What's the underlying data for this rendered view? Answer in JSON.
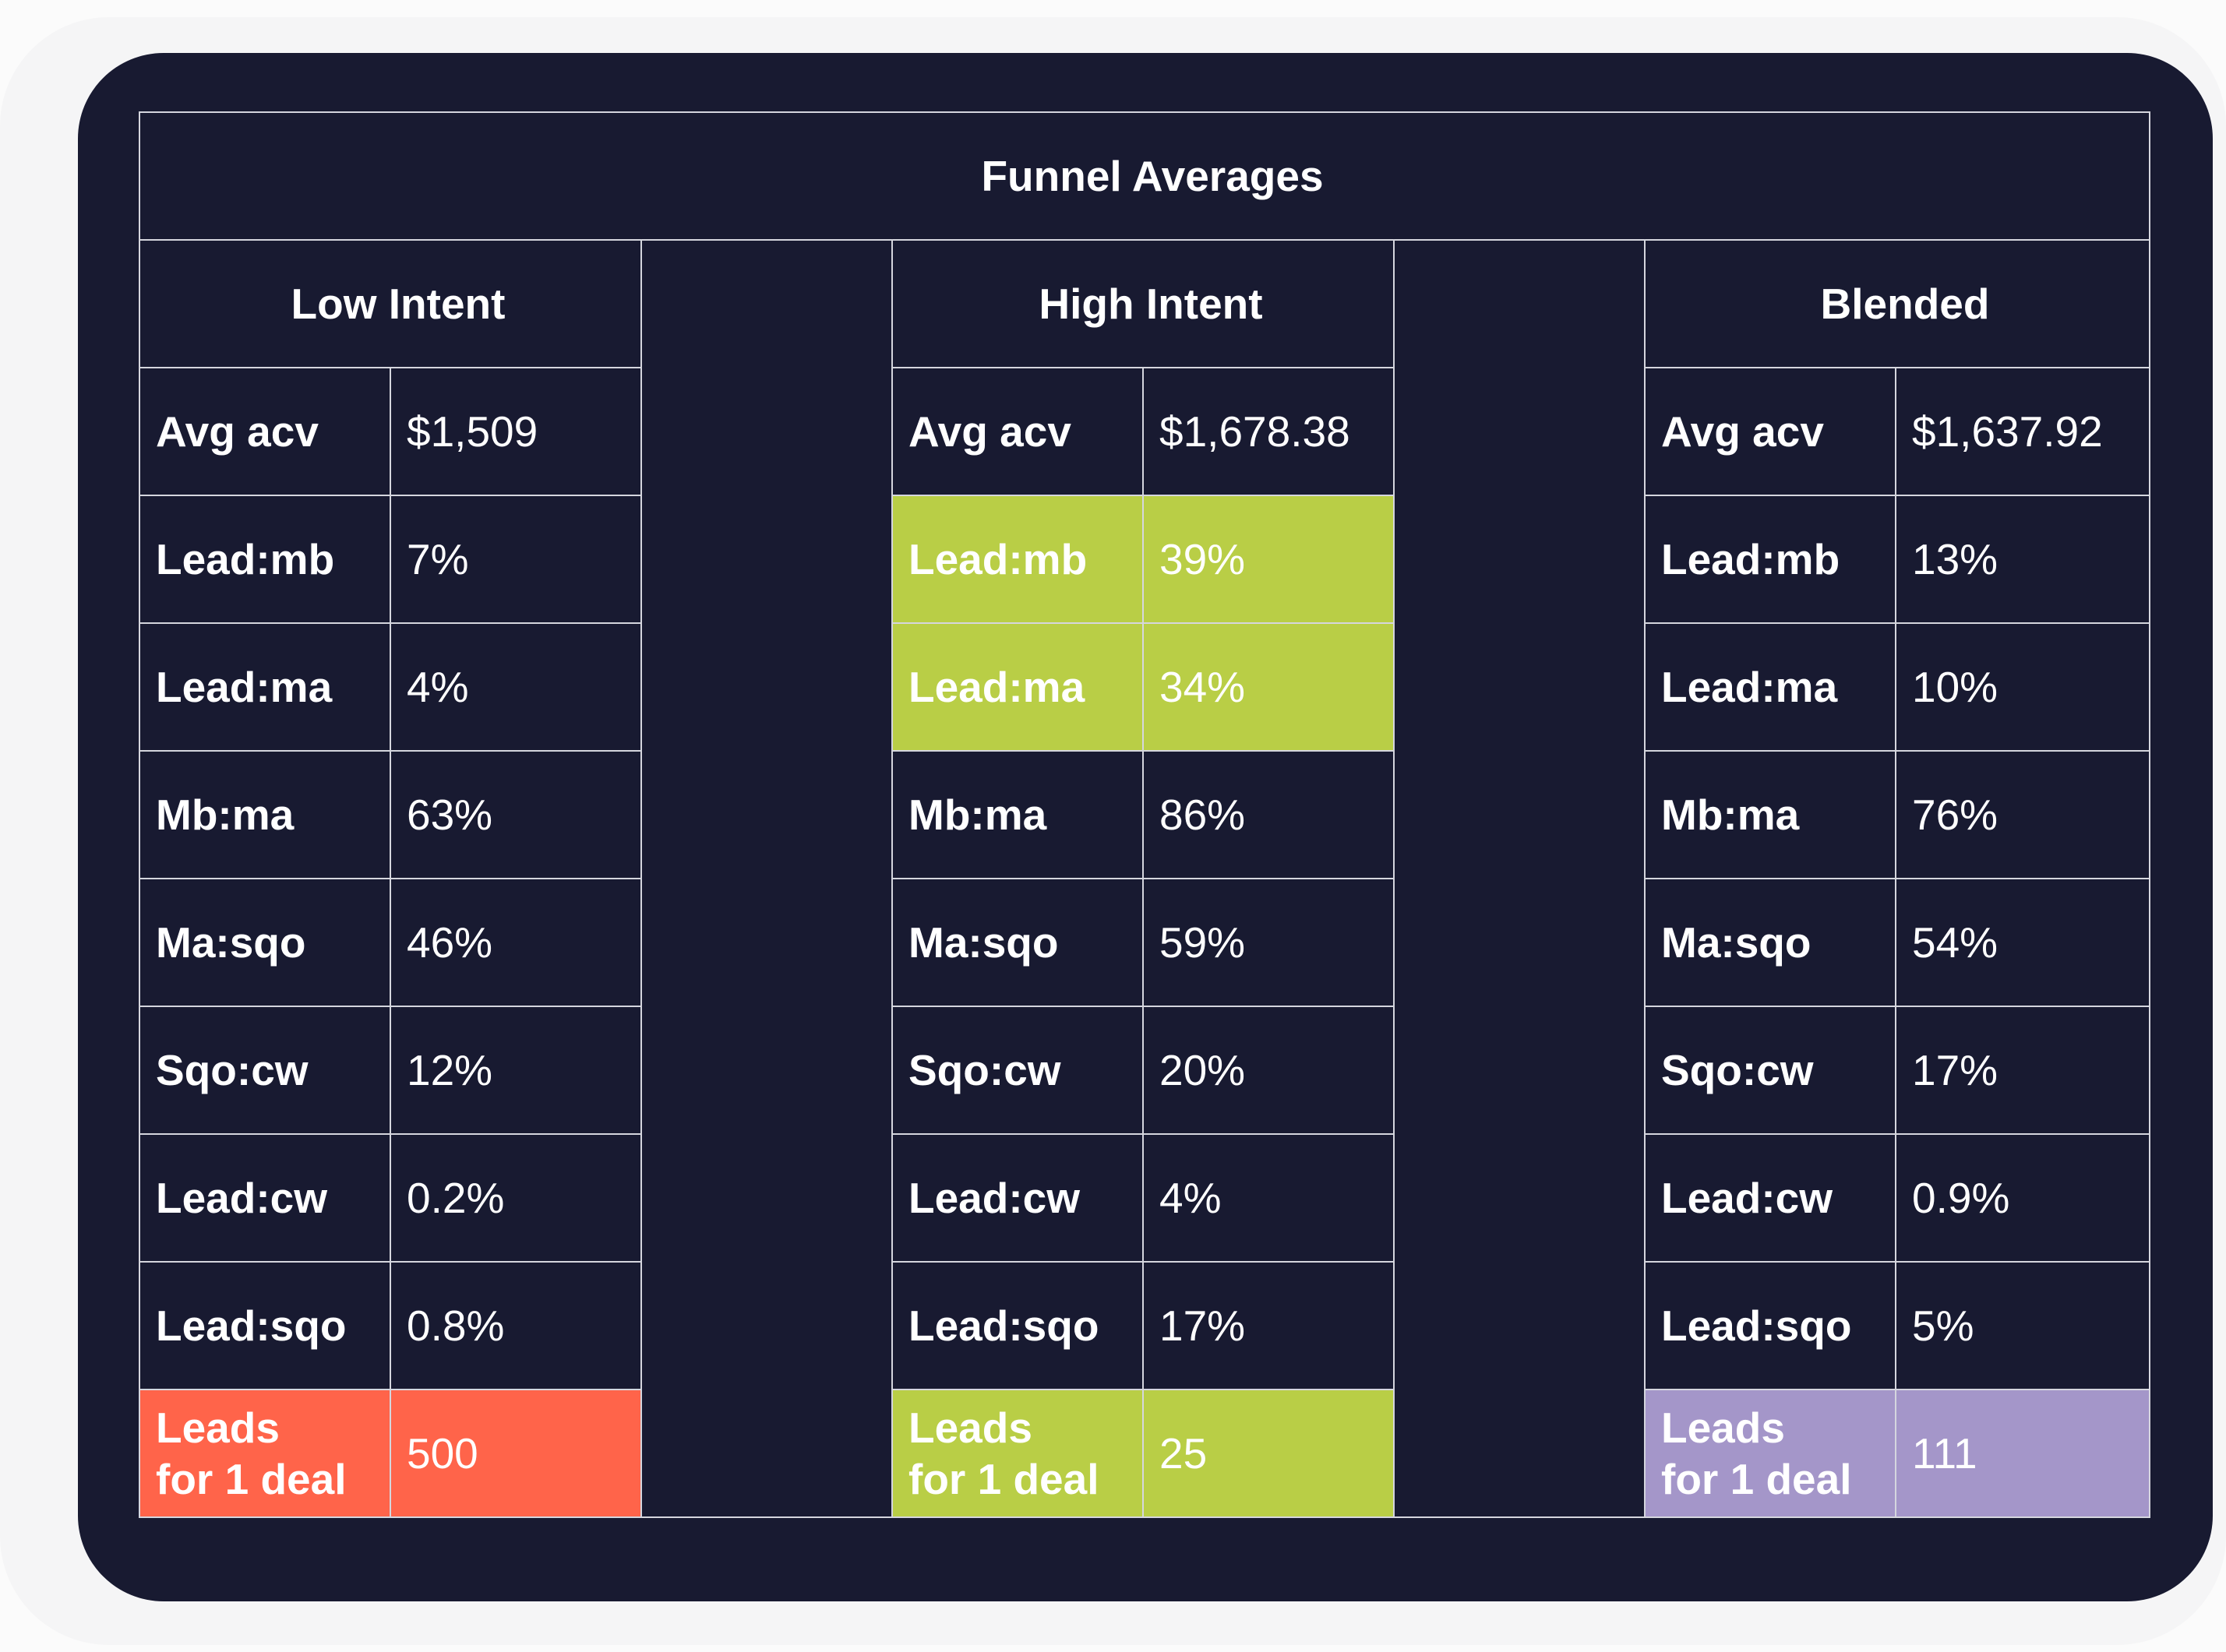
{
  "title": "Funnel Averages",
  "groups": {
    "low": "Low Intent",
    "high": "High Intent",
    "blended": "Blended"
  },
  "rows": [
    {
      "label": "Avg acv",
      "low": "$1,509",
      "high": "$1,678.38",
      "blended": "$1,637.92"
    },
    {
      "label": "Lead:mb",
      "low": "7%",
      "high": "39%",
      "blended": "13%"
    },
    {
      "label": "Lead:ma",
      "low": "4%",
      "high": "34%",
      "blended": "10%"
    },
    {
      "label": "Mb:ma",
      "low": "63%",
      "high": "86%",
      "blended": "76%"
    },
    {
      "label": "Ma:sqo",
      "low": "46%",
      "high": "59%",
      "blended": "54%"
    },
    {
      "label": "Sqo:cw",
      "low": "12%",
      "high": "20%",
      "blended": "17%"
    },
    {
      "label": "Lead:cw",
      "low": "0.2%",
      "high": "4%",
      "blended": "0.9%"
    },
    {
      "label": "Lead:sqo",
      "low": "0.8%",
      "high": "17%",
      "blended": "5%"
    }
  ],
  "final_row": {
    "label_line1": "Leads",
    "label_line2": "for 1 deal",
    "low": "500",
    "high": "25",
    "blended": "111"
  },
  "colors": {
    "background": "#181a31",
    "border": "#d5d6de",
    "highlight_green": "#b9ce46",
    "highlight_red": "#ff644a",
    "highlight_purple": "#a496c9"
  }
}
